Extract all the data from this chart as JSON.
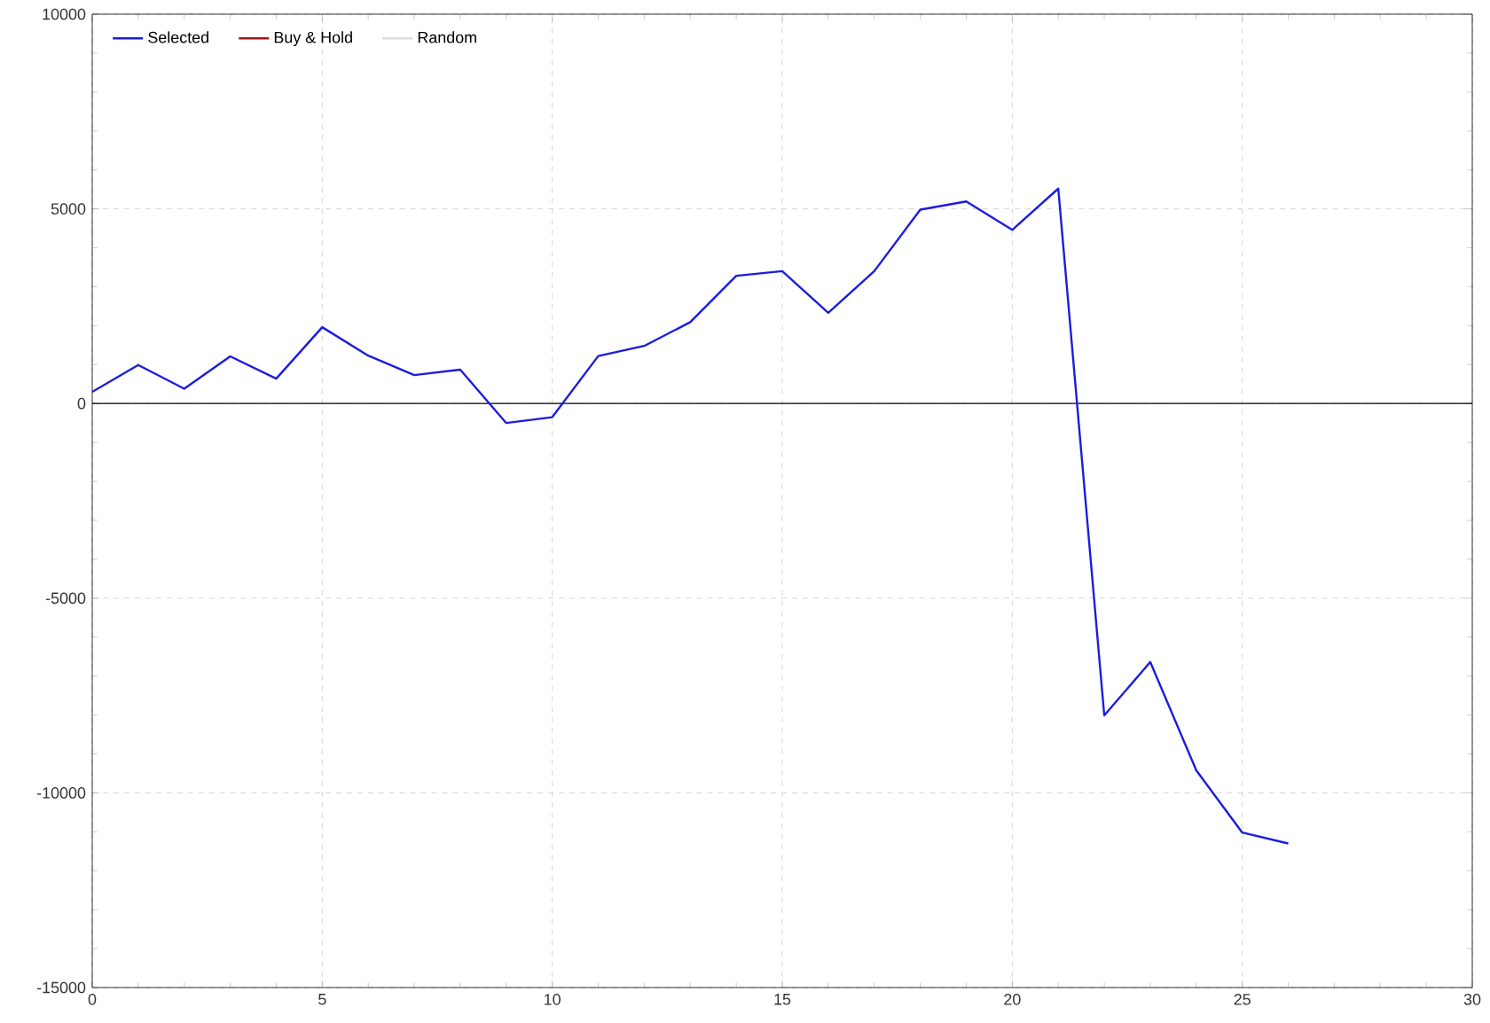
{
  "chart_data": {
    "type": "line",
    "x": [
      0,
      1,
      2,
      3,
      4,
      5,
      6,
      7,
      8,
      9,
      10,
      11,
      12,
      13,
      14,
      15,
      16,
      17,
      18,
      19,
      20,
      21,
      22,
      23,
      24,
      25,
      26
    ],
    "series": [
      {
        "name": "Selected",
        "color": "#1c1ce0",
        "values": [
          300,
          990,
          380,
          1210,
          640,
          1960,
          1230,
          730,
          870,
          -500,
          -350,
          1220,
          1480,
          2090,
          3280,
          3400,
          2330,
          3400,
          4980,
          5190,
          4460,
          5520,
          -8010,
          -6640,
          -9420,
          -11020,
          -11300
        ]
      },
      {
        "name": "Buy & Hold",
        "color": "#a01818",
        "values": [
          null,
          null,
          null,
          null,
          null,
          null,
          null,
          null,
          null,
          null,
          null,
          null,
          null,
          null,
          null,
          null,
          null,
          null,
          null,
          null,
          null,
          null,
          null,
          null,
          null,
          null,
          null
        ]
      },
      {
        "name": "Random",
        "color": "#dcdcdc",
        "values": [
          null,
          null,
          null,
          null,
          null,
          null,
          null,
          null,
          null,
          null,
          null,
          null,
          null,
          null,
          null,
          null,
          null,
          null,
          null,
          null,
          null,
          null,
          null,
          null,
          null,
          null,
          null
        ]
      }
    ],
    "xlim": [
      0,
      30
    ],
    "xticks": [
      0,
      5,
      10,
      15,
      20,
      25,
      30
    ],
    "ylim": [
      -15000,
      10000
    ],
    "yticks": [
      -15000,
      -10000,
      -5000,
      0,
      5000,
      10000
    ],
    "grid": true,
    "legend": "top left",
    "marker": "none",
    "line_style": "solid",
    "ref_lines": [
      {
        "axis": "y",
        "value": 0,
        "color": "#000000"
      }
    ]
  }
}
